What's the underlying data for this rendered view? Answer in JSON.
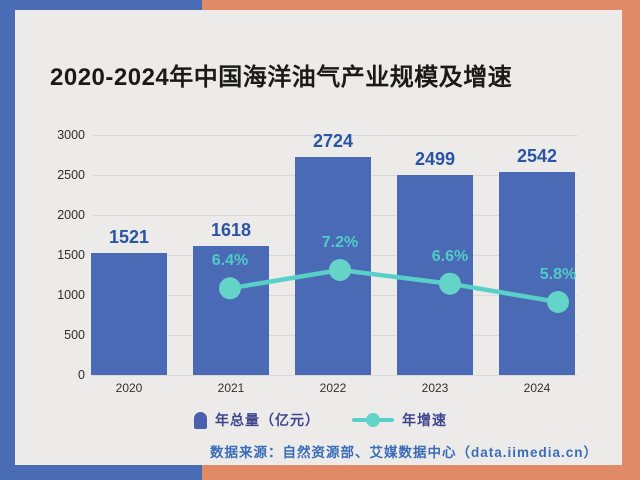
{
  "title": "2020-2024年中国海洋油气产业规模及增速",
  "chart_data": {
    "type": "bar",
    "title": "2020-2024年中国海洋油气产业规模及增速",
    "categories": [
      "2020",
      "2021",
      "2022",
      "2023",
      "2024"
    ],
    "series": [
      {
        "name": "年总量（亿元）",
        "kind": "bar",
        "values": [
          1521,
          1618,
          2724,
          2499,
          2542
        ]
      },
      {
        "name": "年增速",
        "kind": "line",
        "values": [
          null,
          6.4,
          7.2,
          6.6,
          5.8
        ],
        "unit": "%",
        "labels": [
          "",
          "6.4%",
          "7.2%",
          "6.6%",
          "5.8%"
        ]
      }
    ],
    "xlabel": "",
    "ylabel": "",
    "y_ticks": [
      0,
      500,
      1000,
      1500,
      2000,
      2500,
      3000
    ],
    "ylim": [
      0,
      3000
    ],
    "grid": true,
    "legend_position": "bottom"
  },
  "legend": {
    "bar_label": "年总量（亿元）",
    "line_label": "年增速"
  },
  "source": "数据来源：自然资源部、艾媒数据中心（data.iimedia.cn）",
  "colors": {
    "accent_blue": "#4a6cb5",
    "accent_coral": "#e18a68",
    "card_bg": "#ecebe9",
    "bar": "#4a6ab6",
    "bar_value_label": "#2a55a4",
    "line": "#58d0c8",
    "line_dot": "#64d4c9",
    "line_label": "#50cbc6",
    "source_text": "#3a6cb7",
    "title_text": "#1a1a1a"
  }
}
